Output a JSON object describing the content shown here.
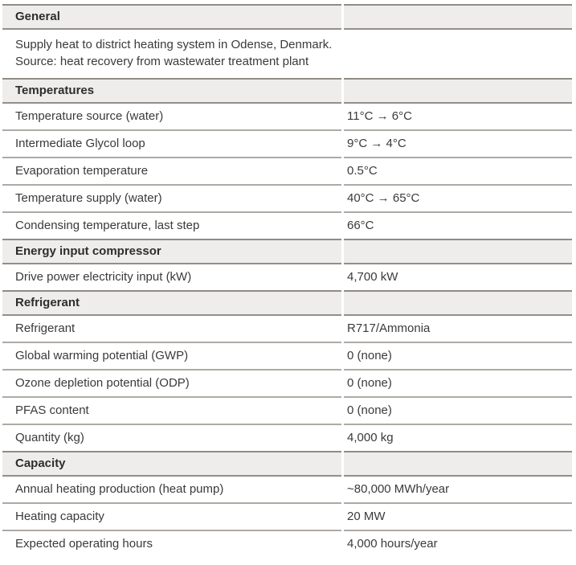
{
  "table": {
    "colors": {
      "header_bg": "#eeedeb",
      "header_border": "#918b85",
      "row_border": "#aeaaa5",
      "header_text": "#2d2d2d",
      "body_text": "#3a3a3a"
    },
    "sections": [
      {
        "title": "General",
        "description_lines": [
          "Supply heat to district heating system in Odense, Denmark.",
          "Source: heat recovery from wastewater treatment plant"
        ],
        "rows": []
      },
      {
        "title": "Temperatures",
        "rows": [
          {
            "label": "Temperature source (water)",
            "value": "11°C → 6°C"
          },
          {
            "label": "Intermediate Glycol loop",
            "value": "9°C → 4°C"
          },
          {
            "label": "Evaporation temperature",
            "value": "0.5°C"
          },
          {
            "label": "Temperature supply (water)",
            "value": "40°C → 65°C"
          },
          {
            "label": "Condensing temperature, last step",
            "value": "66°C"
          }
        ]
      },
      {
        "title": "Energy input compressor",
        "rows": [
          {
            "label": "Drive power electricity input (kW)",
            "value": "4,700 kW"
          }
        ]
      },
      {
        "title": "Refrigerant",
        "rows": [
          {
            "label": "Refrigerant",
            "value": "R717/Ammonia"
          },
          {
            "label": "Global warming potential (GWP)",
            "value": "0 (none)"
          },
          {
            "label": "Ozone depletion potential (ODP)",
            "value": "0 (none)"
          },
          {
            "label": "PFAS content",
            "value": "0 (none)"
          },
          {
            "label": "Quantity (kg)",
            "value": "4,000 kg"
          }
        ]
      },
      {
        "title": "Capacity",
        "rows": [
          {
            "label": "Annual heating production (heat pump)",
            "value": "~80,000 MWh/year"
          },
          {
            "label": "Heating capacity",
            "value": "20 MW"
          },
          {
            "label": "Expected operating hours",
            "value": "4,000 hours/year"
          }
        ]
      }
    ]
  }
}
